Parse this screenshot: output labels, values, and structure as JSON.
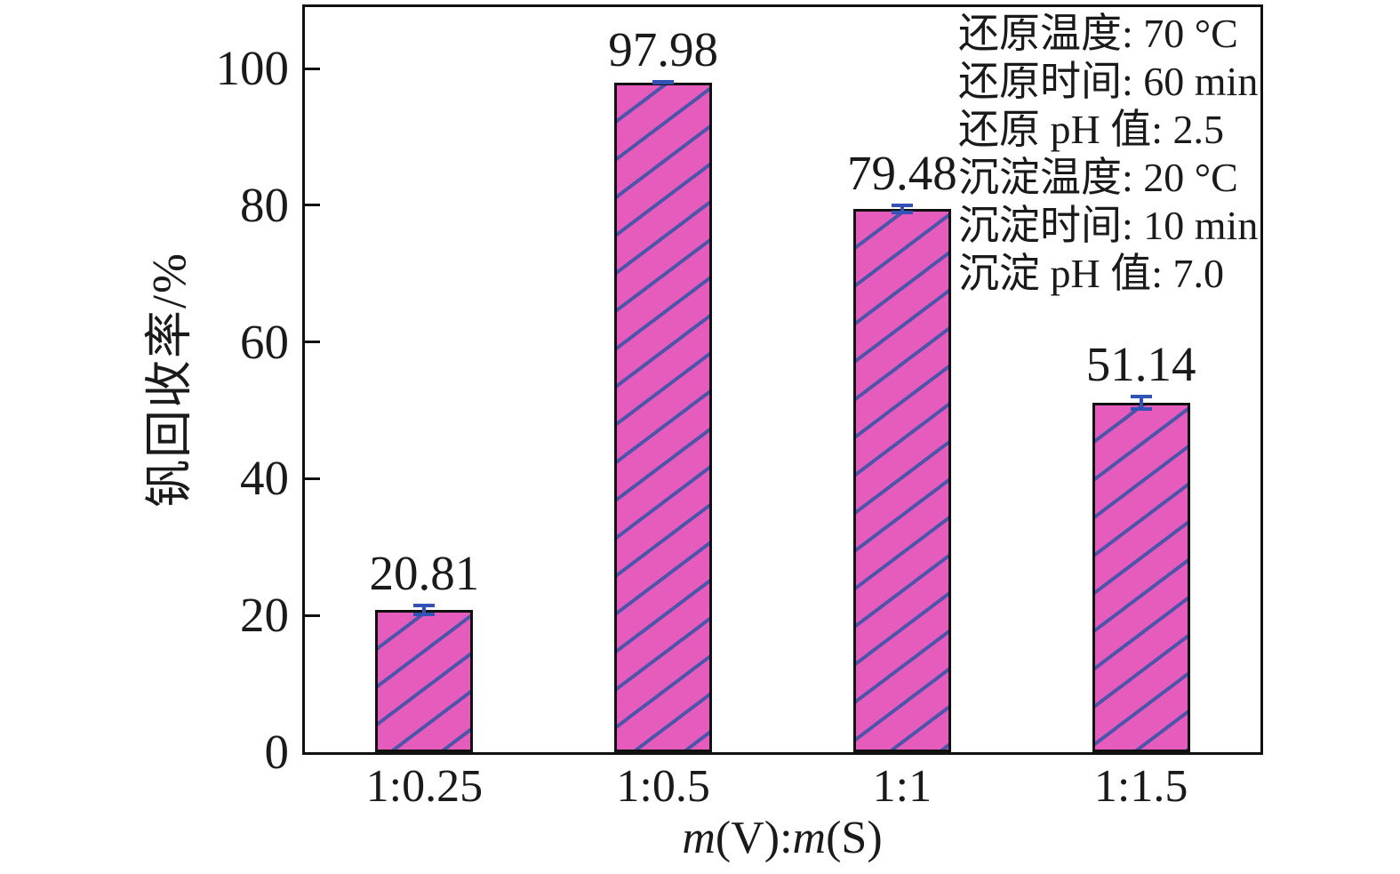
{
  "chart_data": {
    "type": "bar",
    "title": "",
    "categories": [
      "1:0.25",
      "1:0.5",
      "1:1",
      "1:1.5"
    ],
    "values": [
      20.81,
      97.98,
      79.48,
      51.14
    ],
    "errors": [
      0.9,
      0.3,
      0.75,
      1.2
    ],
    "value_label_decimals": 2,
    "xlabel": "m(V):m(S)",
    "xlabel_parts": [
      {
        "text": "m",
        "italic": true
      },
      {
        "text": "(V):",
        "italic": false
      },
      {
        "text": "m",
        "italic": true
      },
      {
        "text": "(S)",
        "italic": false
      }
    ],
    "ylabel": "钒回收率/%",
    "yticks": [
      0,
      20,
      40,
      60,
      80,
      100
    ],
    "ylim": [
      0,
      109
    ],
    "grid": false,
    "legend_position": "none",
    "bar_fill_color": "#e65cbc",
    "hatch_color": "#4d55aa",
    "hatch_style": "diagonal-forward",
    "error_bar_color": "#3352b5",
    "frame_color": "#111111",
    "annotation_lines": [
      "还原温度: 70 °C",
      "还原时间: 60 min",
      "还原 pH 值: 2.5",
      "沉淀温度: 20 °C",
      "沉淀时间: 10 min",
      "沉淀 pH 值: 7.0"
    ]
  }
}
